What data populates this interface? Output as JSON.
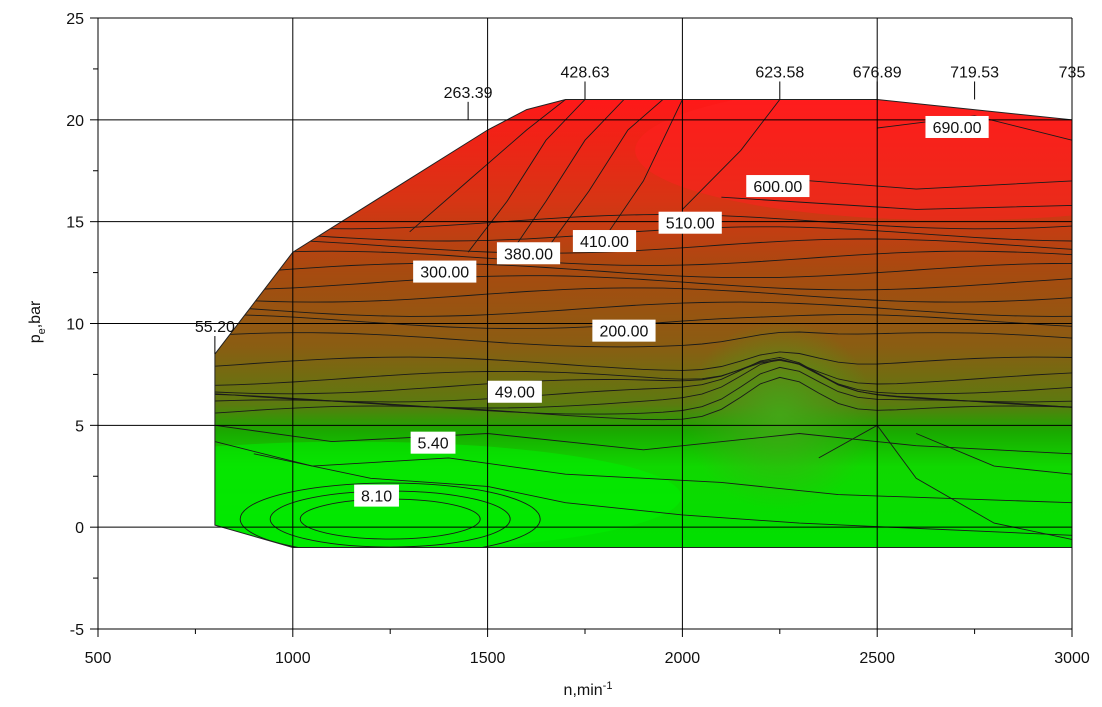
{
  "chart_data": {
    "type": "contour",
    "xlabel": {
      "main": "n,min",
      "sup": "-1"
    },
    "ylabel": {
      "main": "p",
      "sub": "e",
      "rest": ",bar"
    },
    "xlim": [
      500,
      3000
    ],
    "ylim": [
      -5,
      25
    ],
    "x_ticks": [
      500,
      1000,
      1500,
      2000,
      2500,
      3000
    ],
    "y_ticks": [
      -5,
      0,
      5,
      10,
      15,
      20,
      25
    ],
    "grid": true,
    "colors": {
      "low": "#00e000",
      "mid": "#8a6010",
      "high": "#ff1010"
    },
    "boundary": [
      [
        800,
        0.1
      ],
      [
        1000,
        -1
      ],
      [
        3000,
        -1
      ],
      [
        3000,
        20
      ],
      [
        2500,
        21
      ],
      [
        1700,
        21
      ],
      [
        1600,
        20.5
      ],
      [
        1500,
        19.5
      ],
      [
        1000,
        13.5
      ],
      [
        800,
        8.5
      ]
    ],
    "edge_labels": [
      {
        "text": "55.20",
        "x": 800,
        "y": 8.5
      },
      {
        "text": "263.39",
        "x": 1450,
        "y": 20
      },
      {
        "text": "428.63",
        "x": 1750,
        "y": 21
      },
      {
        "text": "623.58",
        "x": 2250,
        "y": 21
      },
      {
        "text": "676.89",
        "x": 2500,
        "y": 21
      },
      {
        "text": "719.53",
        "x": 2750,
        "y": 21
      },
      {
        "text": "735",
        "x": 3000,
        "y": 21
      }
    ],
    "contour_labels": [
      {
        "text": "690.00",
        "x": 2705,
        "y": 19.6
      },
      {
        "text": "600.00",
        "x": 2245,
        "y": 16.7
      },
      {
        "text": "510.00",
        "x": 2020,
        "y": 14.9
      },
      {
        "text": "410.00",
        "x": 1800,
        "y": 14.0
      },
      {
        "text": "380.00",
        "x": 1605,
        "y": 13.4
      },
      {
        "text": "300.00",
        "x": 1390,
        "y": 12.5
      },
      {
        "text": "200.00",
        "x": 1850,
        "y": 9.6
      },
      {
        "text": "49.00",
        "x": 1570,
        "y": 6.6
      },
      {
        "text": "5.40",
        "x": 1360,
        "y": 4.1
      },
      {
        "text": "8.10",
        "x": 1215,
        "y": 1.5
      }
    ]
  }
}
